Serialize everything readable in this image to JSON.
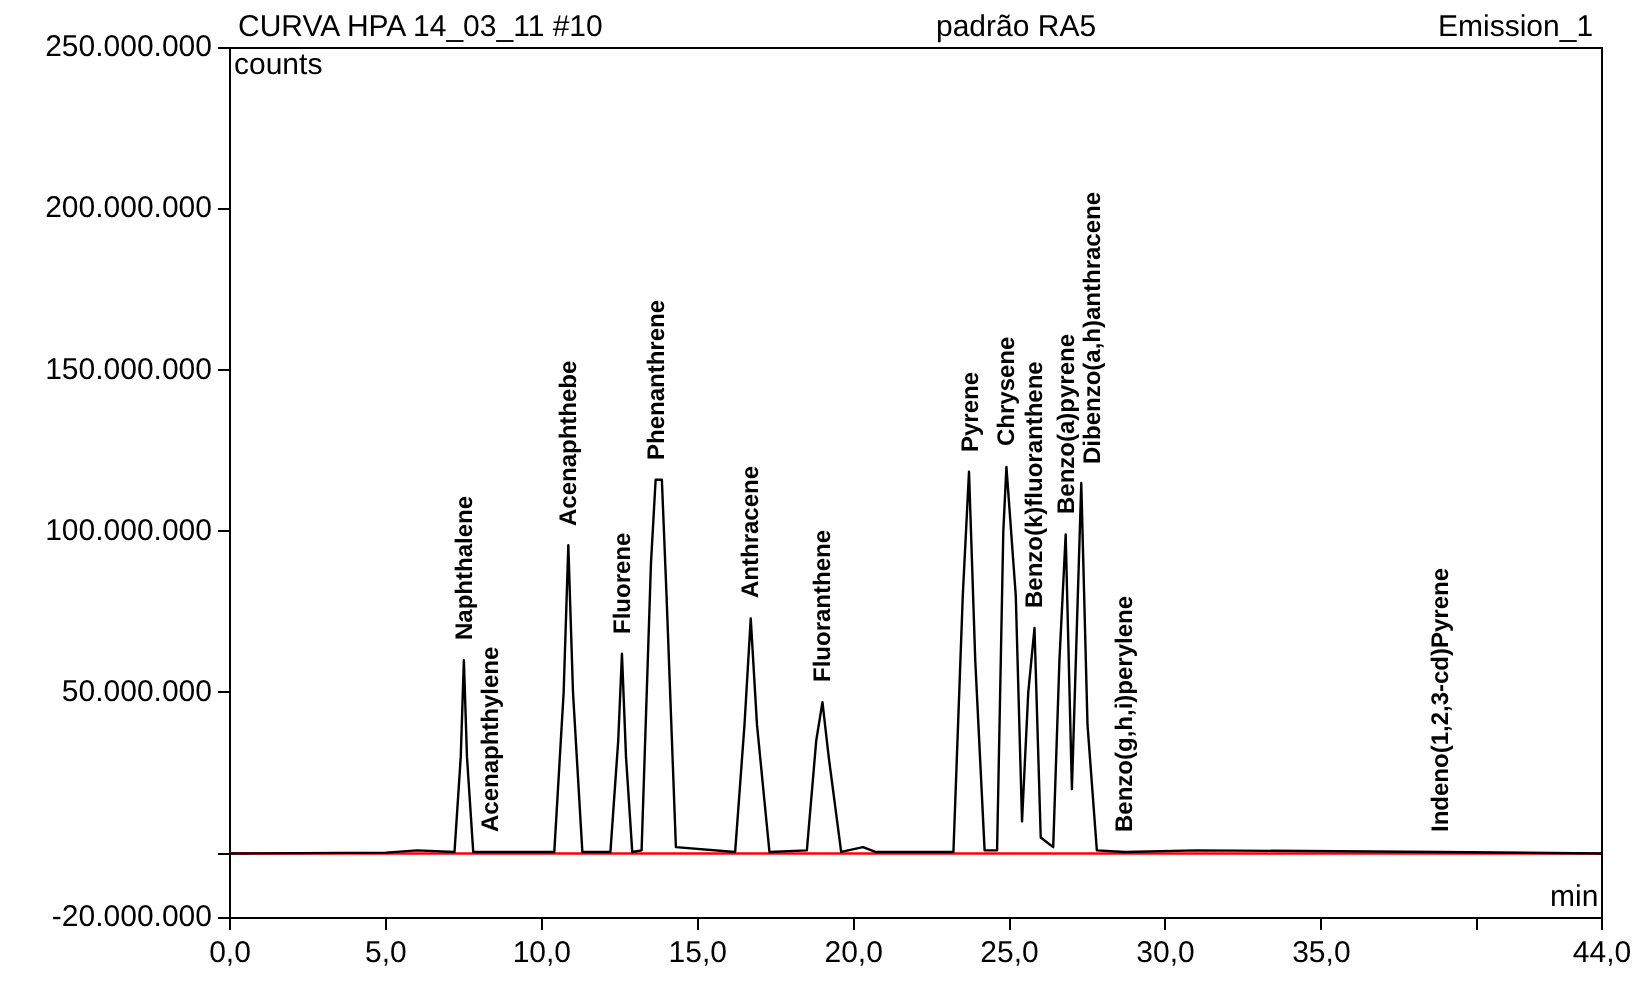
{
  "chart_data": {
    "type": "line",
    "title": "CURVA HPA 14_03_11 #10",
    "subtitle": "padrão RA5",
    "xlabel": "min",
    "ylabel": "counts",
    "annotations": [
      "Emission_1",
      {
        "text": "Naphthalene",
        "x": 7.5,
        "y": 60000000
      },
      {
        "text": "Acenaphthylene",
        "x": 8.3,
        "y": 500000
      },
      {
        "text": "Acenaphthebe",
        "x": 10.85,
        "y": 95700000
      },
      {
        "text": "Fluorene",
        "x": 12.57,
        "y": 62000000
      },
      {
        "text": "Phenanthrene",
        "x": 13.65,
        "y": 116000000
      },
      {
        "text": "Anthracene",
        "x": 16.7,
        "y": 73000000
      },
      {
        "text": "Fluoranthene",
        "x": 19.0,
        "y": 47000000
      },
      {
        "text": "Pyrene",
        "x": 23.7,
        "y": 118500000
      },
      {
        "text": "Chrysene",
        "x": 24.9,
        "y": 120000000
      },
      {
        "text": "Benzo(k)fluoranthene",
        "x": 25.8,
        "y": 70000000
      },
      {
        "text": "Benzo(a)pyrene",
        "x": 26.8,
        "y": 99000000
      },
      {
        "text": "Dibenzo(a,h)anthracene",
        "x": 27.3,
        "y": 115000000
      },
      {
        "text": "Benzo(g,h,i)perylene",
        "x": 28.7,
        "y": 500000
      },
      {
        "text": "Indeno(1,2,3-cd)Pyrene",
        "x": 38.8,
        "y": 500000
      }
    ],
    "series": [
      {
        "color": "#000000",
        "x": [
          0,
          5.0,
          6.0,
          7.2,
          7.4,
          7.5,
          7.6,
          7.8,
          8.3,
          10.4,
          10.7,
          10.85,
          11.0,
          11.3,
          12.2,
          12.45,
          12.57,
          12.7,
          12.9,
          13.2,
          13.5,
          13.65,
          13.85,
          14.0,
          14.3,
          16.2,
          16.5,
          16.7,
          16.9,
          17.3,
          18.5,
          18.8,
          19.0,
          19.2,
          19.6,
          20.3,
          20.7,
          23.2,
          23.5,
          23.7,
          23.9,
          24.2,
          24.6,
          24.8,
          24.9,
          25.2,
          25.4,
          25.6,
          25.8,
          26.0,
          26.4,
          26.6,
          26.8,
          27.0,
          27.3,
          27.5,
          27.8,
          28.7,
          31.0,
          38.8,
          44
        ],
        "values": [
          0,
          300000,
          1000000,
          500000,
          30000000,
          60000000,
          30000000,
          500000,
          500000,
          500000,
          50000000,
          95700000,
          50000000,
          500000,
          500000,
          35000000,
          62000000,
          30000000,
          500000,
          1000000,
          90000000,
          116000000,
          116000000,
          80000000,
          2000000,
          500000,
          40000000,
          73000000,
          40000000,
          500000,
          1000000,
          35000000,
          47000000,
          30000000,
          500000,
          2000000,
          500000,
          500000,
          80000000,
          118500000,
          60000000,
          1000000,
          1000000,
          100000000,
          120000000,
          80000000,
          10000000,
          50000000,
          70000000,
          5000000,
          2000000,
          60000000,
          99000000,
          20000000,
          115000000,
          40000000,
          1000000,
          500000,
          1000000,
          500000,
          0
        ]
      }
    ],
    "xlim": [
      0,
      44
    ],
    "xticks": [
      {
        "value": 0,
        "label": "0,0"
      },
      {
        "value": 5,
        "label": "5,0"
      },
      {
        "value": 10,
        "label": "10,0"
      },
      {
        "value": 15,
        "label": "15,0"
      },
      {
        "value": 20,
        "label": "20,0"
      },
      {
        "value": 25,
        "label": "25,0"
      },
      {
        "value": 30,
        "label": "30,0"
      },
      {
        "value": 35,
        "label": "35,0"
      },
      {
        "value": 40,
        "label": null
      },
      {
        "value": 44,
        "label": "44,0"
      }
    ],
    "ylim": [
      -20000000,
      250000000
    ],
    "yticks": [
      {
        "value": -20000000,
        "label": "-20.000.000"
      },
      {
        "value": 0,
        "label": null
      },
      {
        "value": 50000000,
        "label": "50.000.000"
      },
      {
        "value": 100000000,
        "label": "100.000.000"
      },
      {
        "value": 150000000,
        "label": "150.000.000"
      },
      {
        "value": 200000000,
        "label": "200.000.000"
      },
      {
        "value": 250000000,
        "label": "250.000.000"
      }
    ],
    "ref_lines": [
      {
        "axis": "y",
        "value": 0,
        "label": null,
        "color": "#ff0000"
      }
    ],
    "grid": false,
    "legend": false,
    "marker": "none",
    "line_style": "solid"
  }
}
